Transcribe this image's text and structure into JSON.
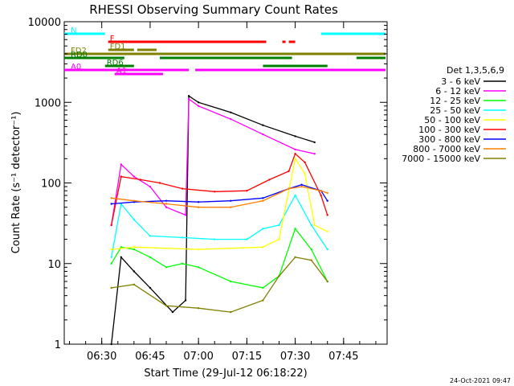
{
  "chart_data": {
    "type": "line",
    "title": "RHESSI Observing Summary Count Rates",
    "xlabel": "Start Time (29-Jul-12 06:18:22)",
    "ylabel": "Count Rate (s⁻¹ detector⁻¹)",
    "y_scale": "log",
    "ylim": [
      1,
      10000
    ],
    "xlim": [
      "06:18:22",
      "07:58:30"
    ],
    "x_ticks": [
      "06:30",
      "06:45",
      "07:00",
      "07:15",
      "07:30",
      "07:45"
    ],
    "y_ticks": [
      {
        "value": 1,
        "label": "1"
      },
      {
        "value": 10,
        "label": "10"
      },
      {
        "value": 100,
        "label": "100"
      },
      {
        "value": 1000,
        "label": "1000"
      },
      {
        "value": 10000,
        "label": "10000"
      }
    ],
    "timestamp": "24-Oct-2021 09:47",
    "legend": {
      "title": "Det 1,3,5,6,9",
      "placement": "right",
      "entries": [
        {
          "label": "3 - 6 keV",
          "color": "#000000"
        },
        {
          "label": "6 - 12 keV",
          "color": "#ff00ff"
        },
        {
          "label": "12 - 25 keV",
          "color": "#00ff00"
        },
        {
          "label": "25 - 50 keV",
          "color": "#00ffff"
        },
        {
          "label": "50 - 100 keV",
          "color": "#ffff00"
        },
        {
          "label": "100 - 300 keV",
          "color": "#ff0000"
        },
        {
          "label": "300 - 800 keV",
          "color": "#0000ff"
        },
        {
          "label": "800 - 7000 keV",
          "color": "#ff8000"
        },
        {
          "label": "7000 - 15000 keV",
          "color": "#808000"
        }
      ]
    },
    "series": [
      {
        "name": "3 - 6 keV",
        "color": "#000000",
        "points": [
          [
            "06:33",
            1
          ],
          [
            "06:36",
            12
          ],
          [
            "06:40",
            8
          ],
          [
            "06:45",
            5
          ],
          [
            "06:52",
            2.5
          ],
          [
            "06:56",
            3.5
          ],
          [
            "06:57",
            1200
          ],
          [
            "07:00",
            1000
          ],
          [
            "07:10",
            750
          ],
          [
            "07:20",
            520
          ],
          [
            "07:30",
            380
          ],
          [
            "07:36",
            320
          ]
        ]
      },
      {
        "name": "6 - 12 keV",
        "color": "#ff00ff",
        "points": [
          [
            "06:33",
            30
          ],
          [
            "06:36",
            170
          ],
          [
            "06:40",
            120
          ],
          [
            "06:45",
            90
          ],
          [
            "06:50",
            50
          ],
          [
            "06:56",
            40
          ],
          [
            "06:57",
            1100
          ],
          [
            "07:00",
            900
          ],
          [
            "07:10",
            620
          ],
          [
            "07:20",
            400
          ],
          [
            "07:30",
            260
          ],
          [
            "07:36",
            230
          ]
        ]
      },
      {
        "name": "12 - 25 keV",
        "color": "#00ff00",
        "points": [
          [
            "06:33",
            10
          ],
          [
            "06:36",
            16
          ],
          [
            "06:40",
            15
          ],
          [
            "06:45",
            12
          ],
          [
            "06:50",
            9
          ],
          [
            "06:55",
            10
          ],
          [
            "07:00",
            9
          ],
          [
            "07:10",
            6
          ],
          [
            "07:20",
            5
          ],
          [
            "07:25",
            7
          ],
          [
            "07:30",
            27
          ],
          [
            "07:35",
            15
          ],
          [
            "07:40",
            6
          ]
        ]
      },
      {
        "name": "25 - 50 keV",
        "color": "#00ffff",
        "points": [
          [
            "06:33",
            12
          ],
          [
            "06:36",
            55
          ],
          [
            "06:40",
            35
          ],
          [
            "06:45",
            22
          ],
          [
            "06:55",
            21
          ],
          [
            "07:05",
            20
          ],
          [
            "07:15",
            20
          ],
          [
            "07:20",
            27
          ],
          [
            "07:25",
            30
          ],
          [
            "07:30",
            70
          ],
          [
            "07:35",
            30
          ],
          [
            "07:40",
            15
          ]
        ]
      },
      {
        "name": "50 - 100 keV",
        "color": "#ffff00",
        "points": [
          [
            "06:33",
            15
          ],
          [
            "06:40",
            16
          ],
          [
            "07:00",
            15
          ],
          [
            "07:20",
            16
          ],
          [
            "07:25",
            20
          ],
          [
            "07:30",
            200
          ],
          [
            "07:33",
            130
          ],
          [
            "07:36",
            30
          ],
          [
            "07:40",
            25
          ]
        ]
      },
      {
        "name": "100 - 300 keV",
        "color": "#ff0000",
        "points": [
          [
            "06:33",
            30
          ],
          [
            "06:36",
            120
          ],
          [
            "06:42",
            110
          ],
          [
            "06:48",
            100
          ],
          [
            "06:55",
            85
          ],
          [
            "07:05",
            78
          ],
          [
            "07:15",
            80
          ],
          [
            "07:22",
            110
          ],
          [
            "07:28",
            140
          ],
          [
            "07:30",
            230
          ],
          [
            "07:33",
            180
          ],
          [
            "07:38",
            70
          ],
          [
            "07:40",
            40
          ]
        ]
      },
      {
        "name": "300 - 800 keV",
        "color": "#0000ff",
        "points": [
          [
            "06:33",
            55
          ],
          [
            "06:40",
            58
          ],
          [
            "06:50",
            60
          ],
          [
            "07:00",
            58
          ],
          [
            "07:10",
            60
          ],
          [
            "07:20",
            65
          ],
          [
            "07:28",
            85
          ],
          [
            "07:32",
            95
          ],
          [
            "07:38",
            80
          ],
          [
            "07:40",
            60
          ]
        ]
      },
      {
        "name": "800 - 7000 keV",
        "color": "#ff8000",
        "points": [
          [
            "06:33",
            65
          ],
          [
            "06:40",
            60
          ],
          [
            "06:50",
            55
          ],
          [
            "07:00",
            50
          ],
          [
            "07:10",
            50
          ],
          [
            "07:20",
            60
          ],
          [
            "07:28",
            85
          ],
          [
            "07:32",
            90
          ],
          [
            "07:38",
            80
          ],
          [
            "07:40",
            75
          ]
        ]
      },
      {
        "name": "7000 - 15000 keV",
        "color": "#808000",
        "points": [
          [
            "06:33",
            5
          ],
          [
            "06:40",
            5.5
          ],
          [
            "06:50",
            3
          ],
          [
            "07:00",
            2.8
          ],
          [
            "07:10",
            2.5
          ],
          [
            "07:20",
            3.5
          ],
          [
            "07:25",
            7
          ],
          [
            "07:30",
            12
          ],
          [
            "07:35",
            11
          ],
          [
            "07:40",
            6
          ]
        ]
      }
    ],
    "status_bars": [
      {
        "label": "N",
        "color": "#00ffff",
        "level": 1,
        "segments": [
          [
            "06:18",
            "06:31"
          ],
          [
            "07:38",
            "07:58"
          ]
        ]
      },
      {
        "label": "F",
        "color": "#ff0000",
        "level": 2,
        "segments": [
          [
            "06:32",
            "07:21"
          ],
          [
            "07:26",
            "07:27"
          ],
          [
            "07:28",
            "07:30"
          ]
        ]
      },
      {
        "label": "FD1",
        "color": "#808000",
        "level": 3,
        "segments": [
          [
            "06:32",
            "06:40"
          ],
          [
            "06:41",
            "06:47"
          ]
        ]
      },
      {
        "label": "FD2",
        "color": "#808000",
        "level": 3.5,
        "segments": [
          [
            "06:18",
            "07:58"
          ]
        ]
      },
      {
        "label": "RD0",
        "color": "#008000",
        "level": 4,
        "segments": [
          [
            "06:18",
            "06:37"
          ],
          [
            "06:48",
            "07:29"
          ],
          [
            "07:49",
            "07:58"
          ]
        ]
      },
      {
        "label": "RD6",
        "color": "#008000",
        "level": 5,
        "segments": [
          [
            "06:31",
            "06:40"
          ],
          [
            "07:20",
            "07:40"
          ]
        ]
      },
      {
        "label": "A0",
        "color": "#ff00ff",
        "level": 5.5,
        "segments": [
          [
            "06:18",
            "06:57"
          ],
          [
            "06:59",
            "07:58"
          ]
        ]
      },
      {
        "label": "A1",
        "color": "#ff00ff",
        "level": 6,
        "segments": [
          [
            "06:34",
            "06:49"
          ]
        ]
      }
    ]
  }
}
